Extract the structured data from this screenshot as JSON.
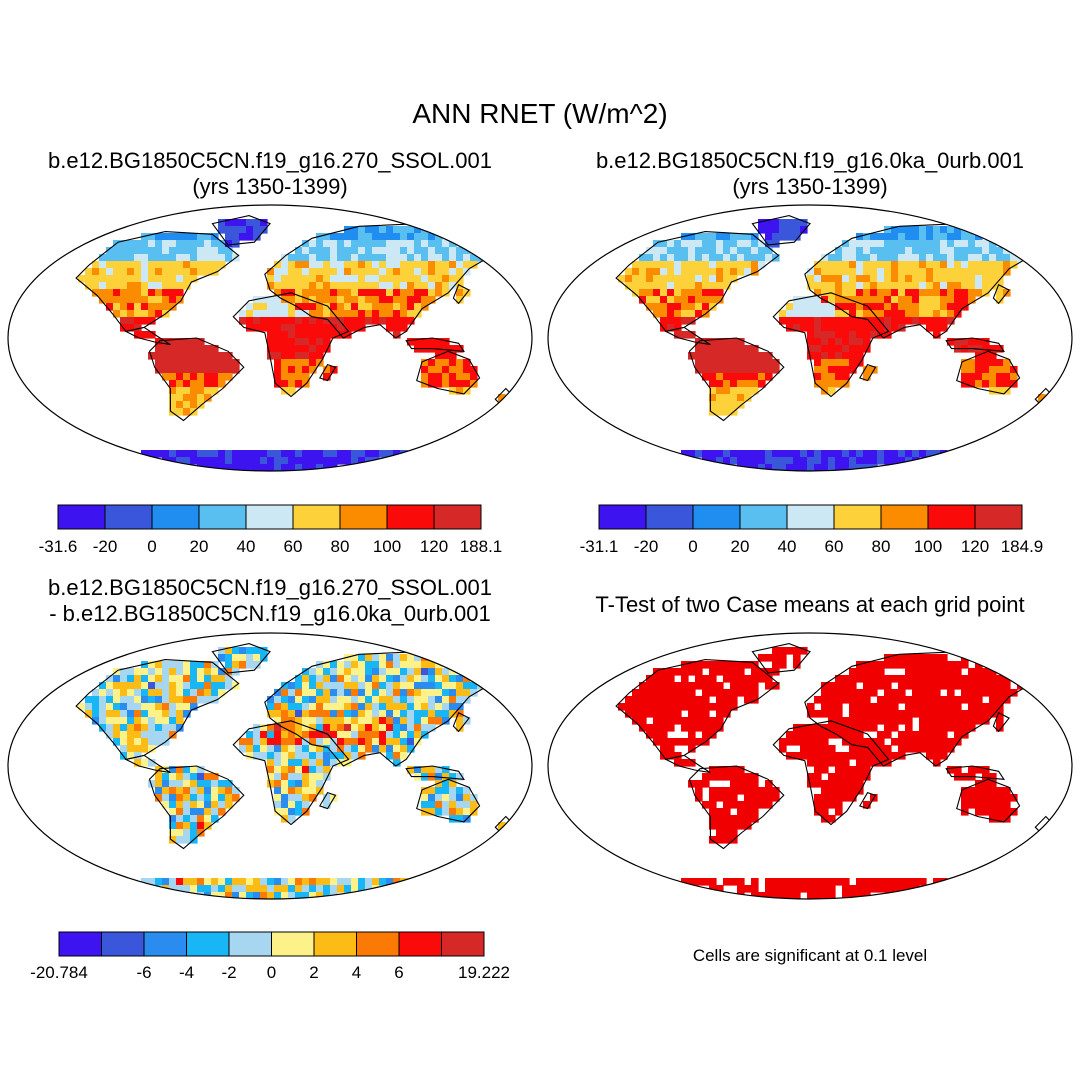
{
  "title": "ANN RNET (W/m^2)",
  "panels": [
    {
      "id": "p1",
      "title_line1": "b.e12.BG1850C5CN.f19_g16.270_SSOL.001",
      "title_line2": "(yrs 1350-1399)"
    },
    {
      "id": "p2",
      "title_line1": "b.e12.BG1850C5CN.f19_g16.0ka_0urb.001",
      "title_line2": "(yrs 1350-1399)"
    },
    {
      "id": "p3",
      "title_line1": "b.e12.BG1850C5CN.f19_g16.270_SSOL.001",
      "title_line2": "- b.e12.BG1850C5CN.f19_g16.0ka_0urb.001"
    },
    {
      "id": "p4",
      "title_line1": "T-Test of two Case means at each grid point"
    }
  ],
  "significance_note": "Cells are significant at 0.1 level",
  "colors": {
    "abs_scale": [
      "#3d14f0",
      "#3a57dc",
      "#1f8ef0",
      "#58bff0",
      "#cde8f5",
      "#fcd13a",
      "#fb8c00",
      "#fb0a0a",
      "#d72828"
    ],
    "diff_scale": [
      "#3d14f0",
      "#3a57dc",
      "#2a8cef",
      "#18b6f4",
      "#a7d6f0",
      "#fdf28a",
      "#fdbb16",
      "#fb7a06",
      "#fb0a0a",
      "#d72828"
    ],
    "significant": "#f00000",
    "land_edge": "#000000"
  },
  "chart_data": [
    {
      "type": "heatmap",
      "panel": "p1",
      "title": "b.e12.BG1850C5CN.f19_g16.270_SSOL.001 (yrs 1350-1399)",
      "variable": "ANN RNET",
      "units": "W/m^2",
      "colorbar": {
        "tick_labels": [
          "-31.6",
          "-20",
          "0",
          "20",
          "40",
          "60",
          "80",
          "100",
          "120",
          "188.1"
        ],
        "min": -31.6,
        "max": 188.1
      }
    },
    {
      "type": "heatmap",
      "panel": "p2",
      "title": "b.e12.BG1850C5CN.f19_g16.0ka_0urb.001 (yrs 1350-1399)",
      "variable": "ANN RNET",
      "units": "W/m^2",
      "colorbar": {
        "tick_labels": [
          "-31.1",
          "-20",
          "0",
          "20",
          "40",
          "60",
          "80",
          "100",
          "120",
          "184.9"
        ],
        "min": -31.1,
        "max": 184.9
      }
    },
    {
      "type": "heatmap",
      "panel": "p3",
      "title": "b.e12.BG1850C5CN.f19_g16.270_SSOL.001 - b.e12.BG1850C5CN.f19_g16.0ka_0urb.001",
      "variable": "ANN RNET difference",
      "units": "W/m^2",
      "colorbar": {
        "tick_labels": [
          "-20.784",
          "",
          "-6",
          "-4",
          "-2",
          "0",
          "2",
          "4",
          "6",
          "",
          "19.222"
        ],
        "min": -20.784,
        "max": 19.222
      }
    },
    {
      "type": "heatmap",
      "panel": "p4",
      "title": "T-Test of two Case means at each grid point",
      "significance_level": 0.1
    }
  ]
}
